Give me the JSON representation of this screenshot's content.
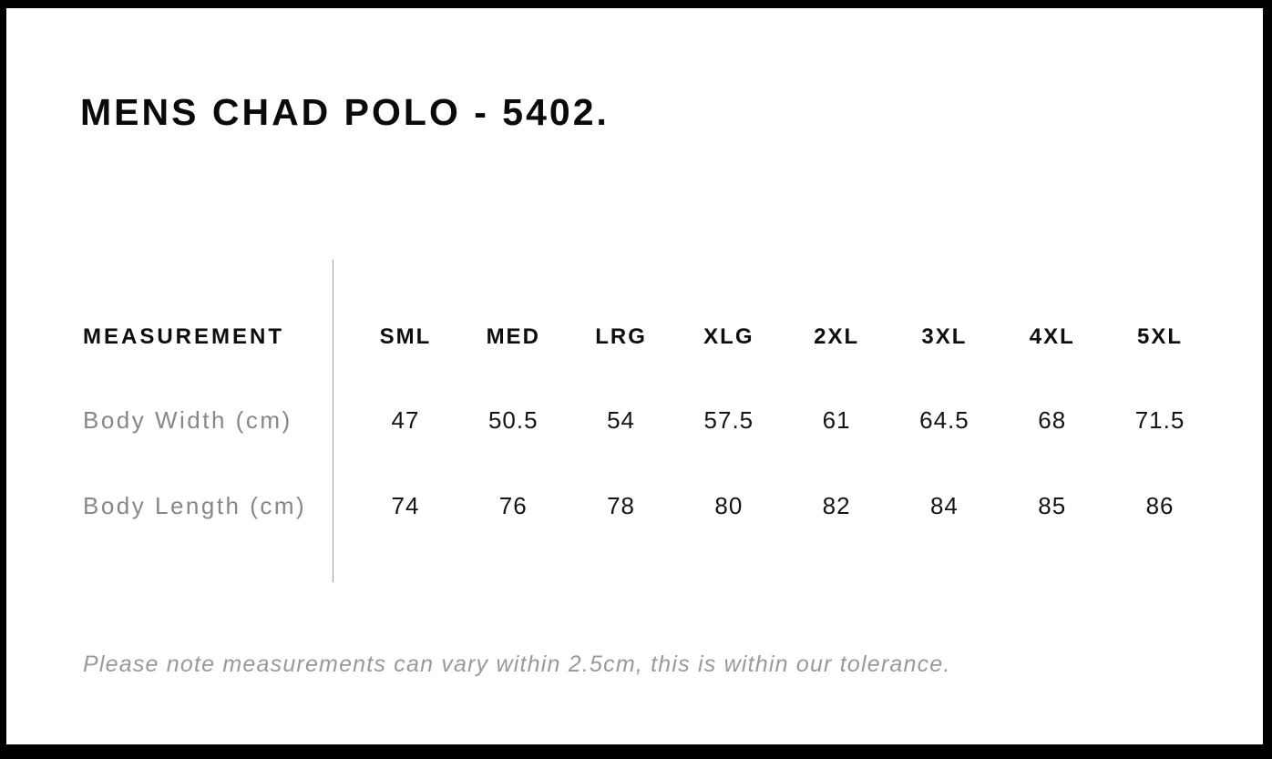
{
  "header": {
    "title": "MENS CHAD POLO - 5402."
  },
  "table": {
    "measurement_header": "MEASUREMENT",
    "sizes": [
      "SML",
      "MED",
      "LRG",
      "XLG",
      "2XL",
      "3XL",
      "4XL",
      "5XL"
    ],
    "rows": [
      {
        "label": "Body Width (cm)",
        "values": [
          "47",
          "50.5",
          "54",
          "57.5",
          "61",
          "64.5",
          "68",
          "71.5"
        ]
      },
      {
        "label": "Body Length (cm)",
        "values": [
          "74",
          "76",
          "78",
          "80",
          "82",
          "84",
          "85",
          "86"
        ]
      }
    ]
  },
  "footer": {
    "note": "Please note measurements can vary within 2.5cm, this is within our tolerance."
  },
  "colors": {
    "frame": "#000000",
    "page_background": "#ffffff",
    "heading_text": "#0a0a0a",
    "value_text": "#141414",
    "label_text": "#878787",
    "note_text": "#999999",
    "divider": "#9e9e9e"
  }
}
